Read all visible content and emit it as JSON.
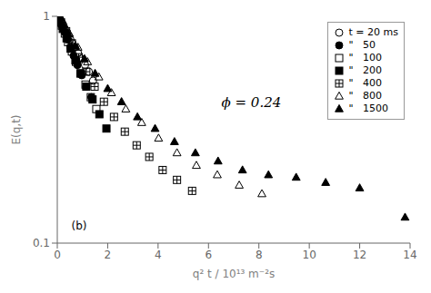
{
  "chart_data": {
    "type": "scatter",
    "xlabel": "q² t / 10¹³ m⁻²s",
    "ylabel": "E(q,t)",
    "annotations": [
      "ϕ = 0.24",
      "(b)"
    ],
    "log": "y",
    "xlim": [
      0,
      14
    ],
    "xticks": [
      0,
      2,
      4,
      6,
      8,
      10,
      12,
      14
    ],
    "ylim": [
      0.1,
      1.0
    ],
    "yticks": [
      0.1,
      1.0
    ],
    "grid": false,
    "legend": "upper right",
    "series": [
      {
        "name": "t = 20 ms",
        "marker": "open_circle",
        "color": "#000000",
        "x": [
          0.05,
          0.1,
          0.15,
          0.2,
          0.25,
          0.3,
          0.38,
          0.45,
          0.52,
          0.6,
          0.7,
          0.82,
          0.95,
          1.1,
          1.25,
          1.42
        ],
        "values": [
          0.98,
          0.97,
          0.95,
          0.93,
          0.91,
          0.88,
          0.85,
          0.82,
          0.79,
          0.76,
          0.73,
          0.69,
          0.65,
          0.61,
          0.57,
          0.52
        ]
      },
      {
        "name": "\"   50",
        "marker": "circle",
        "color": "#000000",
        "x": [
          0.05,
          0.12,
          0.2,
          0.3,
          0.4,
          0.52,
          0.65,
          0.8,
          0.97,
          1.15,
          1.35
        ],
        "values": [
          0.97,
          0.94,
          0.9,
          0.85,
          0.79,
          0.73,
          0.67,
          0.61,
          0.55,
          0.49,
          0.44
        ]
      },
      {
        "name": "\"   100",
        "marker": "open_square",
        "color": "#000000",
        "x": [
          0.08,
          0.18,
          0.3,
          0.43,
          0.58,
          0.74,
          0.92,
          1.12,
          1.33,
          1.55
        ],
        "values": [
          0.96,
          0.91,
          0.84,
          0.77,
          0.7,
          0.63,
          0.56,
          0.5,
          0.44,
          0.39
        ]
      },
      {
        "name": "\"   200",
        "marker": "square",
        "color": "#000000",
        "x": [
          0.1,
          0.22,
          0.37,
          0.53,
          0.72,
          0.93,
          1.15,
          1.4,
          1.67,
          1.95
        ],
        "values": [
          0.95,
          0.88,
          0.8,
          0.72,
          0.64,
          0.56,
          0.49,
          0.43,
          0.37,
          0.32
        ]
      },
      {
        "name": "\"   400",
        "marker": "crossed_square",
        "color": "#000000",
        "x": [
          0.15,
          0.35,
          0.58,
          0.85,
          1.15,
          1.48,
          1.85,
          2.25,
          2.68,
          3.15,
          3.65,
          4.18,
          4.75,
          5.35
        ],
        "values": [
          0.94,
          0.86,
          0.76,
          0.66,
          0.57,
          0.49,
          0.42,
          0.36,
          0.31,
          0.27,
          0.24,
          0.21,
          0.19,
          0.17
        ]
      },
      {
        "name": "\"   800",
        "marker": "open_triangle",
        "color": "#000000",
        "x": [
          0.2,
          0.48,
          0.82,
          1.2,
          1.65,
          2.15,
          2.72,
          3.35,
          4.02,
          4.75,
          5.52,
          6.35,
          7.22,
          8.12
        ],
        "values": [
          0.93,
          0.84,
          0.73,
          0.63,
          0.54,
          0.46,
          0.39,
          0.34,
          0.29,
          0.25,
          0.22,
          0.2,
          0.18,
          0.165
        ]
      },
      {
        "name": "\"   1500",
        "marker": "triangle",
        "color": "#000000",
        "x": [
          0.18,
          0.42,
          0.72,
          1.08,
          1.5,
          2.0,
          2.55,
          3.18,
          3.88,
          4.65,
          5.48,
          6.38,
          7.35,
          8.38,
          9.48,
          10.65,
          12.0,
          13.8
        ],
        "values": [
          0.93,
          0.84,
          0.74,
          0.65,
          0.56,
          0.48,
          0.42,
          0.36,
          0.32,
          0.28,
          0.25,
          0.23,
          0.21,
          0.2,
          0.195,
          0.185,
          0.175,
          0.13
        ]
      }
    ]
  }
}
